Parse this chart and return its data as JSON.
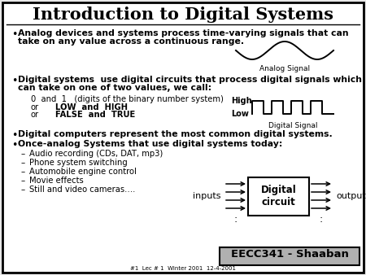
{
  "title": "Introduction to Digital Systems",
  "title_fontsize": 15,
  "body_fontsize": 7.8,
  "small_fontsize": 7,
  "bg_color": "#e8e8e8",
  "border_color": "#000000",
  "text_color": "#000000",
  "footer_bg": "#b0b0b0",
  "footer_text": "EECC341 - Shaaban",
  "footer_subtext": "#1  Lec # 1  Winter 2001  12-4-2001",
  "bullet1_line1": "Analog devices and systems process time-varying signals that can",
  "bullet1_line2": "take on any value across a continuous range.",
  "bullet2_line1": "Digital systems  use digital circuits that process digital signals which",
  "bullet2_line2": "can take on one of two values, we call:",
  "sub2a": "0  and  1   (digits of the binary number system)",
  "sub2b_or": "or",
  "sub2b_vals": "LOW  and  HIGH",
  "sub2c_or": "or",
  "sub2c_vals": "FALSE  and  TRUE",
  "bullet3": "Digital computers represent the most common digital systems.",
  "bullet4": "Once-analog Systems that use digital systems today:",
  "sub4a": "Audio recording (CDs, DAT, mp3)",
  "sub4b": "Phone system switching",
  "sub4c": "Automobile engine control",
  "sub4d": "Movie effects",
  "sub4e": "Still and video cameras….",
  "analog_label": "Analog Signal",
  "digital_label": "Digital Signal",
  "high_label": "High",
  "low_label": "Low",
  "inputs_label": "inputs",
  "outputs_label": "outputs",
  "circuit_label": "Digital\ncircuit"
}
